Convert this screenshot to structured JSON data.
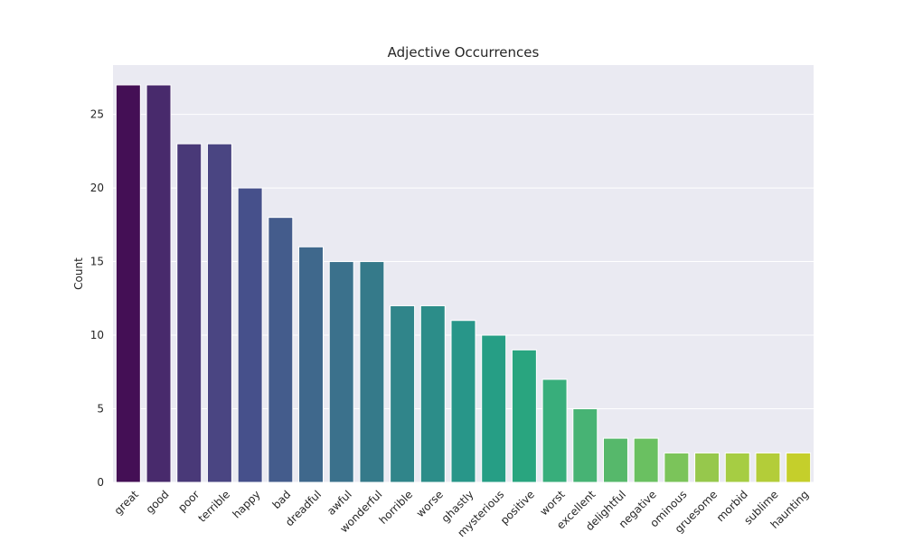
{
  "chart_data": {
    "type": "bar",
    "title": "Adjective Occurrences",
    "xlabel": "",
    "ylabel": "Count",
    "categories": [
      "great",
      "good",
      "poor",
      "terrible",
      "happy",
      "bad",
      "dreadful",
      "awful",
      "wonderful",
      "horrible",
      "worse",
      "ghastly",
      "mysterious",
      "positive",
      "worst",
      "excellent",
      "delightful",
      "negative",
      "ominous",
      "gruesome",
      "morbid",
      "sublime",
      "haunting"
    ],
    "values": [
      27,
      27,
      23,
      23,
      20,
      18,
      16,
      15,
      15,
      12,
      12,
      11,
      10,
      9,
      7,
      5,
      3,
      3,
      2,
      2,
      2,
      2,
      2
    ],
    "ylim": [
      0,
      28.35
    ],
    "yticks": [
      0,
      5,
      10,
      15,
      20,
      25
    ],
    "grid": true,
    "palette": "viridis",
    "background": "#eaeaf2",
    "gridline_color": "#ffffff",
    "bar_colors": [
      "#440f55",
      "#482a6c",
      "#493978",
      "#4a4582",
      "#46508b",
      "#445c8c",
      "#3f688c",
      "#3b718c",
      "#357a8a",
      "#30858a",
      "#2c8d89",
      "#289689",
      "#269e85",
      "#29a57f",
      "#38ae7b",
      "#47b374",
      "#56b86b",
      "#6ac061",
      "#7bc45a",
      "#96c84c",
      "#a6cd43",
      "#b3cd39",
      "#c5cf2b"
    ]
  }
}
